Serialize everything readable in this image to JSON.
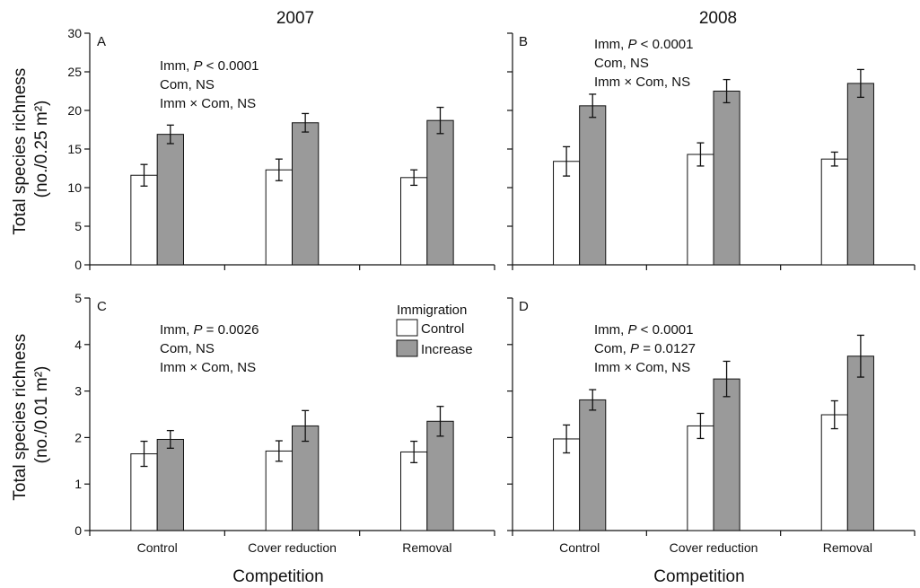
{
  "figure": {
    "column_titles": [
      "2007",
      "2008"
    ],
    "xlabel": "Competition",
    "ylabels": [
      [
        "Total species richness",
        "(no./0.25 m²)"
      ],
      [
        "Total species richness",
        "(no./0.01 m²)"
      ]
    ],
    "legend": {
      "title": "Immigration",
      "entries": [
        "Control",
        "Increase"
      ]
    }
  },
  "colors": {
    "control": "#ffffff",
    "increase": "#9a9a9a",
    "stroke": "#111111"
  },
  "chart_data": [
    {
      "type": "bar",
      "panel": "A",
      "categories": [
        "Control",
        "Cover reduction",
        "Removal"
      ],
      "ylim": [
        0,
        30
      ],
      "yticks": [
        0,
        5,
        10,
        15,
        20,
        25,
        30
      ],
      "series": [
        {
          "name": "Control",
          "values": [
            11.6,
            12.3,
            11.3
          ],
          "errors": [
            1.4,
            1.4,
            1.0
          ]
        },
        {
          "name": "Increase",
          "values": [
            16.9,
            18.4,
            18.7
          ],
          "errors": [
            1.2,
            1.2,
            1.7
          ]
        }
      ],
      "stats": [
        [
          "Imm, ",
          "P",
          " < 0.0001"
        ],
        [
          "Com, NS"
        ],
        [
          "Imm × Com, NS"
        ]
      ]
    },
    {
      "type": "bar",
      "panel": "B",
      "categories": [
        "Control",
        "Cover reduction",
        "Removal"
      ],
      "ylim": [
        0,
        30
      ],
      "yticks": [
        0,
        5,
        10,
        15,
        20,
        25,
        30
      ],
      "series": [
        {
          "name": "Control",
          "values": [
            13.4,
            14.3,
            13.7
          ],
          "errors": [
            1.9,
            1.5,
            0.9
          ]
        },
        {
          "name": "Increase",
          "values": [
            20.6,
            22.5,
            23.5
          ],
          "errors": [
            1.5,
            1.5,
            1.8
          ]
        }
      ],
      "stats": [
        [
          "Imm, ",
          "P",
          " < 0.0001"
        ],
        [
          "Com, NS"
        ],
        [
          "Imm × Com, NS"
        ]
      ]
    },
    {
      "type": "bar",
      "panel": "C",
      "categories": [
        "Control",
        "Cover reduction",
        "Removal"
      ],
      "ylim": [
        0,
        5
      ],
      "yticks": [
        0,
        1,
        2,
        3,
        4,
        5
      ],
      "series": [
        {
          "name": "Control",
          "values": [
            1.65,
            1.71,
            1.69
          ],
          "errors": [
            0.27,
            0.22,
            0.23
          ]
        },
        {
          "name": "Increase",
          "values": [
            1.96,
            2.25,
            2.35
          ],
          "errors": [
            0.19,
            0.33,
            0.32
          ]
        }
      ],
      "stats": [
        [
          "Imm, ",
          "P",
          " = 0.0026"
        ],
        [
          "Com, NS"
        ],
        [
          "Imm × Com, NS"
        ]
      ]
    },
    {
      "type": "bar",
      "panel": "D",
      "categories": [
        "Control",
        "Cover reduction",
        "Removal"
      ],
      "ylim": [
        0,
        5
      ],
      "yticks": [
        0,
        1,
        2,
        3,
        4,
        5
      ],
      "series": [
        {
          "name": "Control",
          "values": [
            1.97,
            2.25,
            2.49
          ],
          "errors": [
            0.3,
            0.27,
            0.3
          ]
        },
        {
          "name": "Increase",
          "values": [
            2.81,
            3.26,
            3.75
          ],
          "errors": [
            0.22,
            0.38,
            0.45
          ]
        }
      ],
      "stats": [
        [
          "Imm, ",
          "P",
          " < 0.0001"
        ],
        [
          "Com, ",
          "P",
          " = 0.0127"
        ],
        [
          "Imm × Com, NS"
        ]
      ]
    }
  ]
}
